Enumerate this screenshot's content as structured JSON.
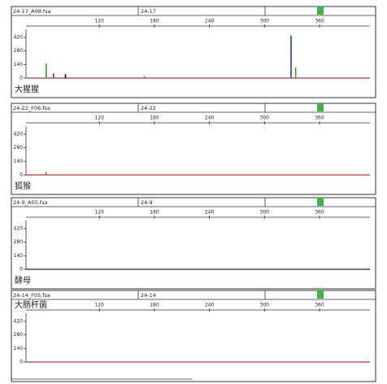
{
  "chart_data": [
    {
      "type": "peaks",
      "file": "24-17_A08.fsa",
      "sample": "24-17",
      "label": "大猩猩",
      "xlim": [
        40,
        415
      ],
      "xticks": [
        120,
        180,
        240,
        300,
        360
      ],
      "ylim": [
        0,
        470
      ],
      "yticks": [
        0,
        140,
        280,
        420
      ],
      "baseline_color": "#c03030",
      "series": [
        {
          "color": "#2ca02c",
          "x": [
            62,
            169,
            334
          ],
          "values": [
            150,
            20,
            110
          ]
        },
        {
          "color": "#d62728",
          "x": [
            70
          ],
          "values": [
            50
          ]
        },
        {
          "color": "#000000",
          "x": [
            83
          ],
          "values": [
            40
          ]
        },
        {
          "color": "#1f3fbf",
          "x": [
            329
          ],
          "values": [
            440
          ]
        }
      ]
    },
    {
      "type": "peaks",
      "file": "24-22_F06.fsa",
      "sample": "24-22",
      "label": "狐猴",
      "xlim": [
        40,
        415
      ],
      "xticks": [
        120,
        180,
        240,
        300,
        360
      ],
      "ylim": [
        0,
        470
      ],
      "yticks": [
        0,
        140,
        280,
        420
      ],
      "baseline_color": "#c03030",
      "series": [
        {
          "color": "#2ca02c",
          "x": [
            62
          ],
          "values": [
            30
          ]
        }
      ]
    },
    {
      "type": "peaks",
      "file": "24-9_A05.fsa",
      "sample": "24-9",
      "label": "酵母",
      "xlim": [
        40,
        415
      ],
      "xticks": [
        120,
        180,
        240,
        300,
        360
      ],
      "ylim": [
        0,
        470
      ],
      "yticks": [
        0,
        140,
        280,
        420
      ],
      "baseline_color": "#202020",
      "series": []
    },
    {
      "type": "peaks",
      "file": "24-14_F05.fsa",
      "sample": "24-14",
      "label": "大肠杆菌",
      "xlim": [
        40,
        415
      ],
      "xticks": [
        120,
        180,
        240,
        300,
        360
      ],
      "ylim": [
        0,
        470
      ],
      "yticks": [
        0,
        140,
        280,
        420
      ],
      "baseline_color": "#c03030",
      "series": []
    }
  ]
}
